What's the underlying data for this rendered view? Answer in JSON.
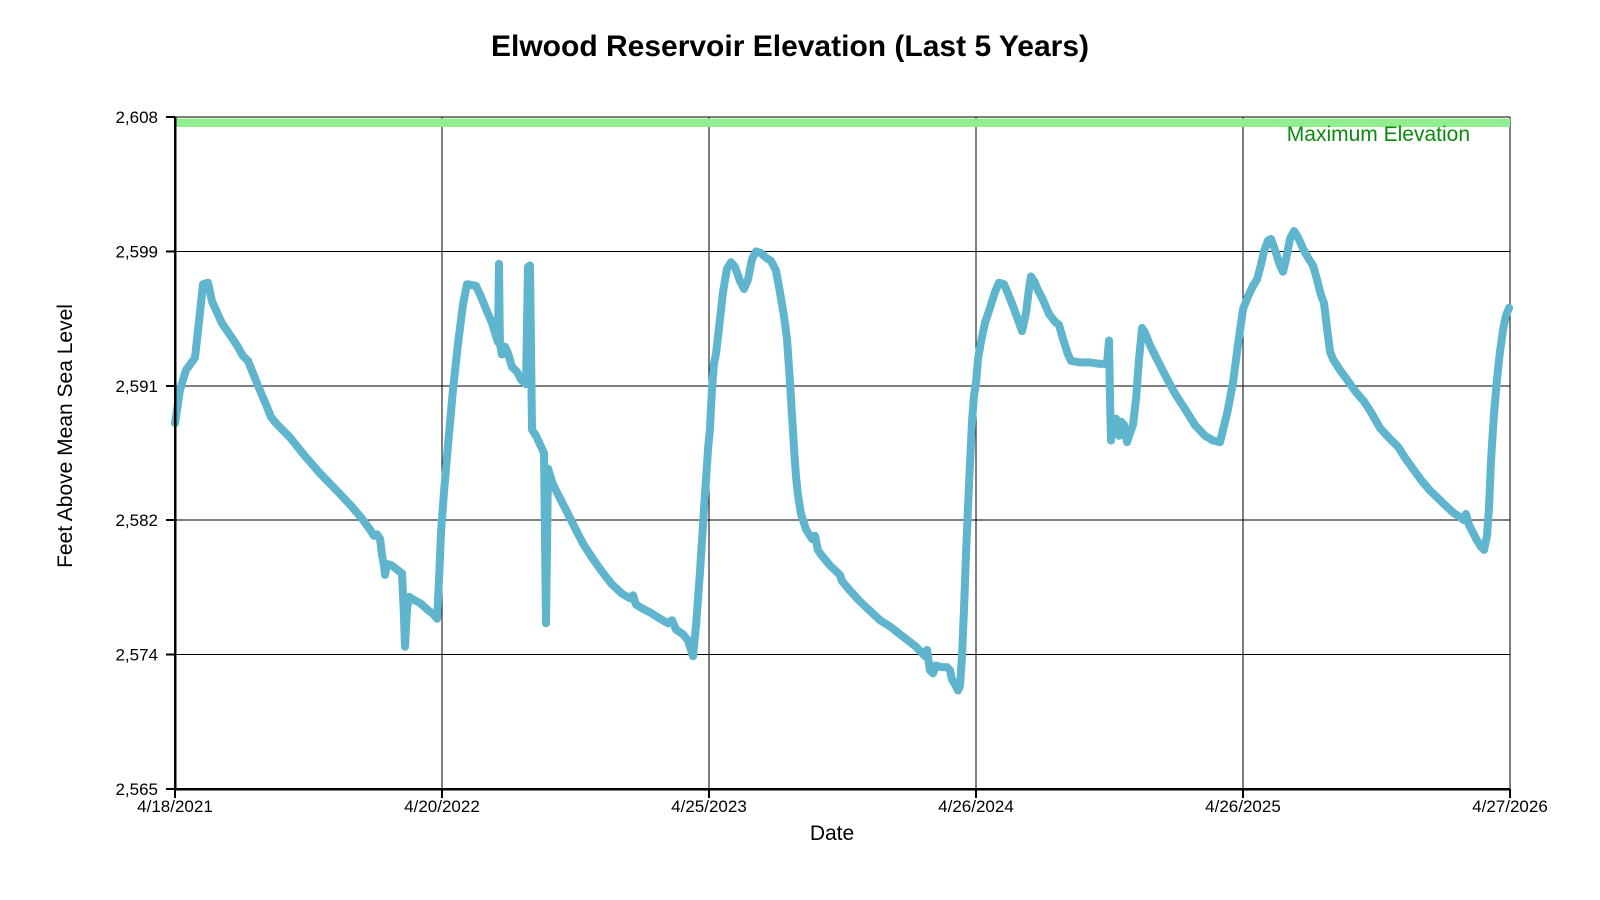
{
  "chart_data": {
    "type": "line",
    "title": "Elwood Reservoir Elevation (Last 5 Years)",
    "xlabel": "Date",
    "ylabel": "Feet Above Mean Sea Level",
    "x_tick_labels": [
      "4/18/2021",
      "4/20/2022",
      "4/25/2023",
      "4/26/2024",
      "4/26/2025",
      "4/27/2026"
    ],
    "y_tick_labels": [
      "2,565",
      "2,574",
      "2,582",
      "2,591",
      "2,599",
      "2,608"
    ],
    "y_axis_range": [
      2565,
      2608
    ],
    "grid": true,
    "background": "#ffffff",
    "line_color": "#5FB4CE",
    "max_line": {
      "label": "Maximum Elevation",
      "value": 2608,
      "band_color": "#90EE90",
      "label_color": "#0A8A0A"
    },
    "series": [
      {
        "points": [
          [
            0.0,
            2588.4
          ],
          [
            0.0037,
            2590.5
          ],
          [
            0.0082,
            2591.8
          ],
          [
            0.015,
            2592.6
          ],
          [
            0.0187,
            2595.5
          ],
          [
            0.021,
            2597.3
          ],
          [
            0.0247,
            2597.4
          ],
          [
            0.0277,
            2596.2
          ],
          [
            0.0352,
            2594.8
          ],
          [
            0.0464,
            2593.4
          ],
          [
            0.0509,
            2592.7
          ],
          [
            0.0547,
            2592.4
          ],
          [
            0.0622,
            2590.8
          ],
          [
            0.0682,
            2589.6
          ],
          [
            0.0719,
            2588.8
          ],
          [
            0.0757,
            2588.4
          ],
          [
            0.0861,
            2587.5
          ],
          [
            0.0974,
            2586.3
          ],
          [
            0.1086,
            2585.2
          ],
          [
            0.1199,
            2584.2
          ],
          [
            0.1311,
            2583.2
          ],
          [
            0.1401,
            2582.3
          ],
          [
            0.1461,
            2581.6
          ],
          [
            0.1491,
            2581.2
          ],
          [
            0.1513,
            2581.3
          ],
          [
            0.1536,
            2581.0
          ],
          [
            0.1551,
            2579.9
          ],
          [
            0.1566,
            2579.3
          ],
          [
            0.1573,
            2578.7
          ],
          [
            0.1588,
            2579.4
          ],
          [
            0.1625,
            2579.3
          ],
          [
            0.167,
            2579.0
          ],
          [
            0.17,
            2578.8
          ],
          [
            0.1715,
            2576.0
          ],
          [
            0.1723,
            2574.1
          ],
          [
            0.1738,
            2576.5
          ],
          [
            0.1753,
            2577.3
          ],
          [
            0.179,
            2577.1
          ],
          [
            0.1835,
            2576.9
          ],
          [
            0.1888,
            2576.5
          ],
          [
            0.1933,
            2576.2
          ],
          [
            0.1963,
            2575.9
          ],
          [
            0.1978,
            2578.5
          ],
          [
            0.1993,
            2581.5
          ],
          [
            0.2015,
            2584.0
          ],
          [
            0.2045,
            2587.0
          ],
          [
            0.2082,
            2590.5
          ],
          [
            0.212,
            2593.5
          ],
          [
            0.2157,
            2596.0
          ],
          [
            0.2187,
            2597.3
          ],
          [
            0.2255,
            2597.2
          ],
          [
            0.2292,
            2596.5
          ],
          [
            0.233,
            2595.7
          ],
          [
            0.2375,
            2594.8
          ],
          [
            0.2404,
            2594.0
          ],
          [
            0.2419,
            2593.6
          ],
          [
            0.2427,
            2598.6
          ],
          [
            0.2434,
            2593.5
          ],
          [
            0.2449,
            2592.8
          ],
          [
            0.2472,
            2593.3
          ],
          [
            0.2494,
            2592.9
          ],
          [
            0.2524,
            2592.0
          ],
          [
            0.2562,
            2591.7
          ],
          [
            0.2592,
            2591.2
          ],
          [
            0.2629,
            2590.9
          ],
          [
            0.2644,
            2598.4
          ],
          [
            0.2659,
            2598.5
          ],
          [
            0.2674,
            2588.0
          ],
          [
            0.2704,
            2587.6
          ],
          [
            0.2742,
            2586.9
          ],
          [
            0.2764,
            2586.5
          ],
          [
            0.2779,
            2575.6
          ],
          [
            0.2794,
            2585.5
          ],
          [
            0.2831,
            2584.5
          ],
          [
            0.2884,
            2583.6
          ],
          [
            0.2944,
            2582.6
          ],
          [
            0.2996,
            2581.7
          ],
          [
            0.3056,
            2580.7
          ],
          [
            0.3124,
            2579.8
          ],
          [
            0.3199,
            2578.9
          ],
          [
            0.3273,
            2578.1
          ],
          [
            0.3348,
            2577.5
          ],
          [
            0.3408,
            2577.2
          ],
          [
            0.3431,
            2577.4
          ],
          [
            0.3453,
            2576.8
          ],
          [
            0.3491,
            2576.6
          ],
          [
            0.3558,
            2576.3
          ],
          [
            0.3633,
            2575.9
          ],
          [
            0.3693,
            2575.6
          ],
          [
            0.3723,
            2575.8
          ],
          [
            0.3753,
            2575.2
          ],
          [
            0.3805,
            2574.9
          ],
          [
            0.3843,
            2574.5
          ],
          [
            0.3865,
            2573.9
          ],
          [
            0.388,
            2573.5
          ],
          [
            0.3903,
            2575.5
          ],
          [
            0.3933,
            2579.0
          ],
          [
            0.3963,
            2583.0
          ],
          [
            0.3993,
            2586.8
          ],
          [
            0.4007,
            2588.0
          ],
          [
            0.4022,
            2590.5
          ],
          [
            0.4037,
            2592.2
          ],
          [
            0.4052,
            2592.8
          ],
          [
            0.4075,
            2594.5
          ],
          [
            0.4105,
            2596.8
          ],
          [
            0.4135,
            2598.3
          ],
          [
            0.4165,
            2598.7
          ],
          [
            0.4195,
            2598.4
          ],
          [
            0.4232,
            2597.5
          ],
          [
            0.4262,
            2597.0
          ],
          [
            0.4292,
            2597.6
          ],
          [
            0.4322,
            2598.9
          ],
          [
            0.4352,
            2599.4
          ],
          [
            0.4389,
            2599.3
          ],
          [
            0.4427,
            2599.0
          ],
          [
            0.4464,
            2598.8
          ],
          [
            0.4501,
            2598.2
          ],
          [
            0.4531,
            2596.8
          ],
          [
            0.4561,
            2595.3
          ],
          [
            0.4584,
            2593.8
          ],
          [
            0.4607,
            2591.0
          ],
          [
            0.4622,
            2588.9
          ],
          [
            0.4637,
            2586.8
          ],
          [
            0.4652,
            2585.0
          ],
          [
            0.4667,
            2583.8
          ],
          [
            0.4689,
            2582.6
          ],
          [
            0.4727,
            2581.6
          ],
          [
            0.4772,
            2581.0
          ],
          [
            0.4794,
            2581.2
          ],
          [
            0.4816,
            2580.3
          ],
          [
            0.4839,
            2580.0
          ],
          [
            0.4906,
            2579.3
          ],
          [
            0.4981,
            2578.7
          ],
          [
            0.4996,
            2578.3
          ],
          [
            0.5056,
            2577.7
          ],
          [
            0.5131,
            2577.0
          ],
          [
            0.5206,
            2576.4
          ],
          [
            0.5281,
            2575.8
          ],
          [
            0.5356,
            2575.4
          ],
          [
            0.5431,
            2574.9
          ],
          [
            0.5506,
            2574.4
          ],
          [
            0.5551,
            2574.1
          ],
          [
            0.5596,
            2573.7
          ],
          [
            0.5618,
            2573.5
          ],
          [
            0.5633,
            2573.9
          ],
          [
            0.5655,
            2572.6
          ],
          [
            0.5678,
            2572.4
          ],
          [
            0.57,
            2572.9
          ],
          [
            0.5738,
            2572.8
          ],
          [
            0.5783,
            2572.8
          ],
          [
            0.5805,
            2572.6
          ],
          [
            0.582,
            2572.0
          ],
          [
            0.5843,
            2571.7
          ],
          [
            0.5865,
            2571.3
          ],
          [
            0.588,
            2571.6
          ],
          [
            0.5895,
            2573.5
          ],
          [
            0.591,
            2576.5
          ],
          [
            0.5925,
            2580.0
          ],
          [
            0.594,
            2583.0
          ],
          [
            0.5955,
            2585.8
          ],
          [
            0.597,
            2588.5
          ],
          [
            0.5985,
            2590.2
          ],
          [
            0.6,
            2591.0
          ],
          [
            0.6015,
            2592.5
          ],
          [
            0.6037,
            2593.6
          ],
          [
            0.6067,
            2594.8
          ],
          [
            0.6105,
            2595.8
          ],
          [
            0.6142,
            2596.8
          ],
          [
            0.6172,
            2597.4
          ],
          [
            0.621,
            2597.3
          ],
          [
            0.624,
            2596.7
          ],
          [
            0.6277,
            2595.9
          ],
          [
            0.6315,
            2595.0
          ],
          [
            0.6345,
            2594.3
          ],
          [
            0.6375,
            2595.5
          ],
          [
            0.6397,
            2597.0
          ],
          [
            0.6412,
            2597.8
          ],
          [
            0.6435,
            2597.5
          ],
          [
            0.6465,
            2596.9
          ],
          [
            0.6502,
            2596.3
          ],
          [
            0.6547,
            2595.4
          ],
          [
            0.6592,
            2594.9
          ],
          [
            0.6622,
            2594.7
          ],
          [
            0.6652,
            2593.8
          ],
          [
            0.6689,
            2592.8
          ],
          [
            0.6712,
            2592.4
          ],
          [
            0.6779,
            2592.3
          ],
          [
            0.6854,
            2592.3
          ],
          [
            0.6929,
            2592.2
          ],
          [
            0.6981,
            2592.2
          ],
          [
            0.6996,
            2593.7
          ],
          [
            0.7004,
            2590.0
          ],
          [
            0.7011,
            2587.3
          ],
          [
            0.7026,
            2588.5
          ],
          [
            0.7049,
            2588.7
          ],
          [
            0.7072,
            2587.6
          ],
          [
            0.7087,
            2588.5
          ],
          [
            0.7109,
            2588.3
          ],
          [
            0.7131,
            2587.2
          ],
          [
            0.7154,
            2587.8
          ],
          [
            0.7176,
            2588.3
          ],
          [
            0.7199,
            2590.0
          ],
          [
            0.7221,
            2592.5
          ],
          [
            0.7244,
            2594.5
          ],
          [
            0.7266,
            2594.2
          ],
          [
            0.7303,
            2593.4
          ],
          [
            0.7356,
            2592.5
          ],
          [
            0.7416,
            2591.5
          ],
          [
            0.7491,
            2590.3
          ],
          [
            0.7566,
            2589.3
          ],
          [
            0.764,
            2588.3
          ],
          [
            0.7715,
            2587.6
          ],
          [
            0.7775,
            2587.3
          ],
          [
            0.7828,
            2587.2
          ],
          [
            0.788,
            2589.0
          ],
          [
            0.7925,
            2591.0
          ],
          [
            0.7963,
            2593.5
          ],
          [
            0.8,
            2595.7
          ],
          [
            0.8037,
            2596.5
          ],
          [
            0.8075,
            2597.2
          ],
          [
            0.8105,
            2597.6
          ],
          [
            0.8127,
            2598.3
          ],
          [
            0.8157,
            2599.4
          ],
          [
            0.8187,
            2600.1
          ],
          [
            0.821,
            2600.2
          ],
          [
            0.824,
            2599.5
          ],
          [
            0.8277,
            2598.5
          ],
          [
            0.83,
            2598.1
          ],
          [
            0.8322,
            2598.9
          ],
          [
            0.8352,
            2600.2
          ],
          [
            0.8382,
            2600.7
          ],
          [
            0.8412,
            2600.3
          ],
          [
            0.8449,
            2599.6
          ],
          [
            0.8487,
            2599.0
          ],
          [
            0.8524,
            2598.5
          ],
          [
            0.8554,
            2597.6
          ],
          [
            0.8584,
            2596.6
          ],
          [
            0.8607,
            2596.1
          ],
          [
            0.8629,
            2594.5
          ],
          [
            0.8652,
            2593.0
          ],
          [
            0.8674,
            2592.5
          ],
          [
            0.8727,
            2591.8
          ],
          [
            0.8787,
            2591.1
          ],
          [
            0.8846,
            2590.4
          ],
          [
            0.8906,
            2589.8
          ],
          [
            0.8966,
            2589.0
          ],
          [
            0.9026,
            2588.1
          ],
          [
            0.9101,
            2587.4
          ],
          [
            0.9161,
            2586.9
          ],
          [
            0.9221,
            2586.1
          ],
          [
            0.9281,
            2585.4
          ],
          [
            0.9341,
            2584.7
          ],
          [
            0.9401,
            2584.1
          ],
          [
            0.9461,
            2583.6
          ],
          [
            0.9521,
            2583.1
          ],
          [
            0.9573,
            2582.7
          ],
          [
            0.9625,
            2582.4
          ],
          [
            0.9655,
            2582.2
          ],
          [
            0.967,
            2582.6
          ],
          [
            0.9693,
            2581.9
          ],
          [
            0.9723,
            2581.4
          ],
          [
            0.9753,
            2580.9
          ],
          [
            0.9783,
            2580.5
          ],
          [
            0.9805,
            2580.3
          ],
          [
            0.9828,
            2581.2
          ],
          [
            0.9843,
            2583.0
          ],
          [
            0.9858,
            2586.0
          ],
          [
            0.988,
            2589.0
          ],
          [
            0.9903,
            2591.3
          ],
          [
            0.9925,
            2593.0
          ],
          [
            0.9948,
            2594.4
          ],
          [
            0.997,
            2595.3
          ],
          [
            0.9993,
            2595.8
          ]
        ]
      }
    ]
  }
}
